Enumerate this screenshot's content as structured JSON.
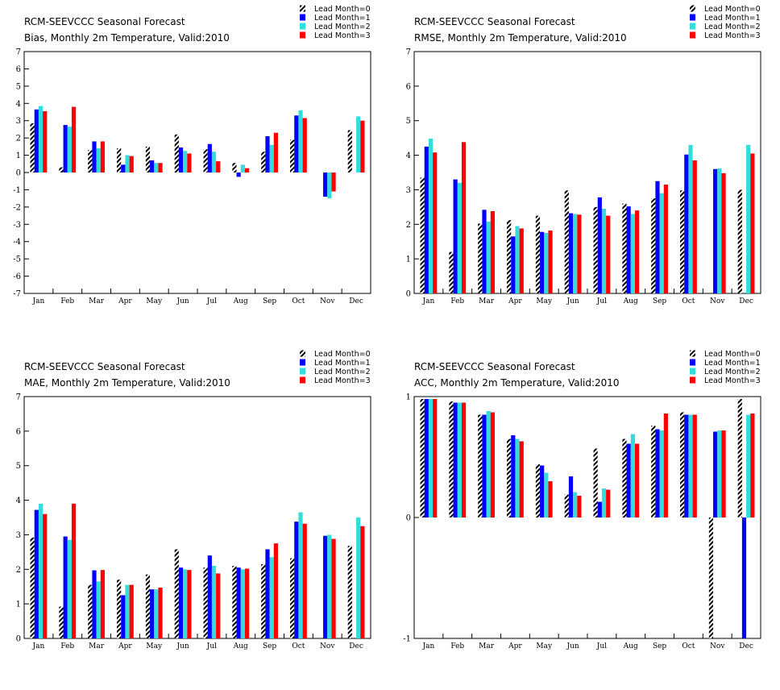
{
  "colors": {
    "lead0": "hatched-black-white",
    "lead1": "#0000ff",
    "lead2": "#33dddd",
    "lead3": "#ff0000",
    "axis": "#000000",
    "background": "#ffffff"
  },
  "chart_data": [
    {
      "type": "bar",
      "title": "RCM-SEEVCCC Seasonal Forecast",
      "subtitle": "Bias, Monthly 2m Temperature, Valid:2010",
      "legend_placement": "top-right",
      "grid": false,
      "ylim": [
        -7,
        7
      ],
      "yticks": [
        "7",
        "6",
        "5",
        "4",
        "3",
        "2",
        "1",
        "0",
        "-1",
        "-2",
        "-3",
        "-4",
        "-5",
        "-6",
        "-7"
      ],
      "ytick_values": [
        7,
        6,
        5,
        4,
        3,
        2,
        1,
        0,
        -1,
        -2,
        -3,
        -4,
        -5,
        -6,
        -7
      ],
      "categories": [
        "Jan",
        "Feb",
        "Mar",
        "Apr",
        "May",
        "Jun",
        "Jul",
        "Aug",
        "Sep",
        "Oct",
        "Nov",
        "Dec"
      ],
      "series": [
        {
          "name": "Lead Month=0",
          "values": [
            2.85,
            0.3,
            1.3,
            1.4,
            1.5,
            2.2,
            1.35,
            0.55,
            1.2,
            1.9,
            null,
            2.45
          ]
        },
        {
          "name": "Lead Month=1",
          "values": [
            3.65,
            2.75,
            1.8,
            0.45,
            0.7,
            1.45,
            1.65,
            -0.25,
            2.1,
            3.3,
            -1.4,
            null
          ]
        },
        {
          "name": "Lead Month=2",
          "values": [
            3.85,
            2.65,
            1.4,
            1.0,
            0.55,
            1.25,
            1.2,
            0.45,
            1.6,
            3.6,
            -1.5,
            3.25
          ]
        },
        {
          "name": "Lead Month=3",
          "values": [
            3.55,
            3.8,
            1.8,
            0.95,
            0.55,
            1.1,
            0.65,
            0.25,
            2.3,
            3.15,
            -1.1,
            3.0
          ]
        }
      ]
    },
    {
      "type": "bar",
      "title": "RCM-SEEVCCC Seasonal Forecast",
      "subtitle": "RMSE, Monthly 2m Temperature, Valid:2010",
      "legend_placement": "top-right",
      "grid": false,
      "ylim": [
        0,
        7
      ],
      "yticks": [
        "7",
        "6",
        "5",
        "4",
        "3",
        "2",
        "1",
        "0"
      ],
      "ytick_values": [
        7,
        6,
        5,
        4,
        3,
        2,
        1,
        0
      ],
      "categories": [
        "Jan",
        "Feb",
        "Mar",
        "Apr",
        "May",
        "Jun",
        "Jul",
        "Aug",
        "Sep",
        "Oct",
        "Nov",
        "Dec"
      ],
      "series": [
        {
          "name": "Lead Month=0",
          "values": [
            3.35,
            1.2,
            2.02,
            2.12,
            2.25,
            2.98,
            2.5,
            2.6,
            2.75,
            2.98,
            null,
            3.0
          ]
        },
        {
          "name": "Lead Month=1",
          "values": [
            4.25,
            3.3,
            2.42,
            1.65,
            1.78,
            2.32,
            2.78,
            2.52,
            3.25,
            4.02,
            3.6,
            null
          ]
        },
        {
          "name": "Lead Month=2",
          "values": [
            4.48,
            3.2,
            2.08,
            1.95,
            1.75,
            2.3,
            2.45,
            2.3,
            2.9,
            4.3,
            3.62,
            4.3
          ]
        },
        {
          "name": "Lead Month=3",
          "values": [
            4.08,
            4.38,
            2.38,
            1.88,
            1.82,
            2.28,
            2.25,
            2.4,
            3.15,
            3.85,
            3.48,
            4.05
          ]
        }
      ]
    },
    {
      "type": "bar",
      "title": "RCM-SEEVCCC Seasonal Forecast",
      "subtitle": "MAE, Monthly 2m Temperature, Valid:2010",
      "legend_placement": "top-right",
      "grid": false,
      "ylim": [
        0,
        7
      ],
      "yticks": [
        "7",
        "6",
        "5",
        "4",
        "3",
        "2",
        "1",
        "0"
      ],
      "ytick_values": [
        7,
        6,
        5,
        4,
        3,
        2,
        1,
        0
      ],
      "categories": [
        "Jan",
        "Feb",
        "Mar",
        "Apr",
        "May",
        "Jun",
        "Jul",
        "Aug",
        "Sep",
        "Oct",
        "Nov",
        "Dec"
      ],
      "series": [
        {
          "name": "Lead Month=0",
          "values": [
            2.92,
            0.92,
            1.55,
            1.7,
            1.85,
            2.58,
            2.05,
            2.1,
            2.15,
            2.32,
            null,
            2.68
          ]
        },
        {
          "name": "Lead Month=1",
          "values": [
            3.72,
            2.95,
            1.97,
            1.25,
            1.42,
            2.05,
            2.4,
            2.05,
            2.58,
            3.38,
            2.97,
            null
          ]
        },
        {
          "name": "Lead Month=2",
          "values": [
            3.9,
            2.85,
            1.65,
            1.55,
            1.42,
            2.0,
            2.1,
            2.0,
            2.35,
            3.65,
            3.0,
            3.5
          ]
        },
        {
          "name": "Lead Month=3",
          "values": [
            3.6,
            3.9,
            1.98,
            1.55,
            1.47,
            1.98,
            1.88,
            2.02,
            2.75,
            3.32,
            2.88,
            3.25
          ]
        }
      ]
    },
    {
      "type": "bar",
      "title": "RCM-SEEVCCC Seasonal Forecast",
      "subtitle": "ACC, Monthly 2m Temperature, Valid:2010",
      "legend_placement": "top-right",
      "grid": false,
      "ylim": [
        -1,
        1
      ],
      "yticks": [
        "1",
        "0",
        "-1"
      ],
      "ytick_values": [
        1,
        0,
        -1
      ],
      "categories": [
        "Jan",
        "Feb",
        "Mar",
        "Apr",
        "May",
        "Jun",
        "Jul",
        "Aug",
        "Sep",
        "Oct",
        "Nov",
        "Dec"
      ],
      "series": [
        {
          "name": "Lead Month=0",
          "values": [
            0.98,
            0.96,
            0.85,
            0.65,
            0.44,
            0.19,
            0.57,
            0.65,
            0.76,
            0.87,
            -1.0,
            0.98
          ]
        },
        {
          "name": "Lead Month=1",
          "values": [
            0.98,
            0.95,
            0.85,
            0.68,
            0.43,
            0.34,
            0.13,
            0.61,
            0.73,
            0.85,
            0.71,
            -1.0
          ]
        },
        {
          "name": "Lead Month=2",
          "values": [
            0.98,
            0.95,
            0.88,
            0.65,
            0.37,
            0.21,
            0.24,
            0.69,
            0.72,
            0.85,
            0.72,
            0.85
          ]
        },
        {
          "name": "Lead Month=3",
          "values": [
            0.98,
            0.95,
            0.87,
            0.63,
            0.3,
            0.18,
            0.23,
            0.61,
            0.86,
            0.85,
            0.72,
            0.86
          ]
        }
      ]
    }
  ]
}
